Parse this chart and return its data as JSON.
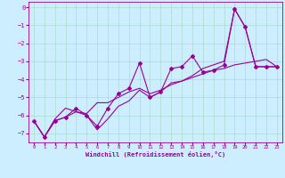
{
  "xlabel": "Windchill (Refroidissement éolien,°C)",
  "bg_color": "#cceeff",
  "grid_color": "#aaddcc",
  "line_color": "#990099",
  "xlim": [
    -0.5,
    23.5
  ],
  "ylim": [
    -7.5,
    0.3
  ],
  "yticks": [
    0,
    -1,
    -2,
    -3,
    -4,
    -5,
    -6,
    -7
  ],
  "xticks": [
    0,
    1,
    2,
    3,
    4,
    5,
    6,
    7,
    8,
    9,
    10,
    11,
    12,
    13,
    14,
    15,
    16,
    17,
    18,
    19,
    20,
    21,
    22,
    23
  ],
  "series": [
    {
      "x": [
        0,
        1,
        2,
        3,
        4,
        5,
        6,
        7,
        8,
        9,
        10,
        11,
        12,
        13,
        14,
        15,
        16,
        17,
        18,
        19,
        20,
        21,
        22,
        23
      ],
      "y": [
        -6.3,
        -7.2,
        -6.3,
        -6.1,
        -5.6,
        -6.0,
        -6.6,
        -5.6,
        -4.8,
        -4.5,
        -3.1,
        -5.0,
        -4.7,
        -3.4,
        -3.3,
        -2.7,
        -3.6,
        -3.5,
        -3.2,
        -0.1,
        -1.1,
        -3.3,
        -3.3,
        -3.3
      ],
      "marker": "D",
      "markersize": 2,
      "linewidth": 0.8
    },
    {
      "x": [
        0,
        1,
        2,
        3,
        4,
        5,
        6,
        7,
        8,
        9,
        10,
        11,
        12,
        13,
        14,
        15,
        16,
        17,
        18,
        19,
        20,
        21,
        22,
        23
      ],
      "y": [
        -6.3,
        -7.2,
        -6.2,
        -5.6,
        -5.8,
        -5.9,
        -5.3,
        -5.3,
        -5.0,
        -4.7,
        -4.5,
        -4.8,
        -4.6,
        -4.3,
        -4.1,
        -3.9,
        -3.7,
        -3.5,
        -3.4,
        -3.2,
        -3.1,
        -3.0,
        -2.9,
        -3.3
      ],
      "marker": null,
      "markersize": 0,
      "linewidth": 0.8
    },
    {
      "x": [
        0,
        1,
        2,
        3,
        4,
        5,
        6,
        7,
        8,
        9,
        10,
        11,
        12,
        13,
        14,
        15,
        16,
        17,
        18,
        19,
        20,
        21,
        22,
        23
      ],
      "y": [
        -6.3,
        -7.2,
        -6.3,
        -6.1,
        -5.8,
        -6.0,
        -6.8,
        -6.2,
        -5.5,
        -5.2,
        -4.6,
        -5.0,
        -4.7,
        -4.2,
        -4.1,
        -3.8,
        -3.4,
        -3.2,
        -3.0,
        -0.1,
        -1.1,
        -3.3,
        -3.3,
        -3.3
      ],
      "marker": null,
      "markersize": 0,
      "linewidth": 0.8
    }
  ]
}
